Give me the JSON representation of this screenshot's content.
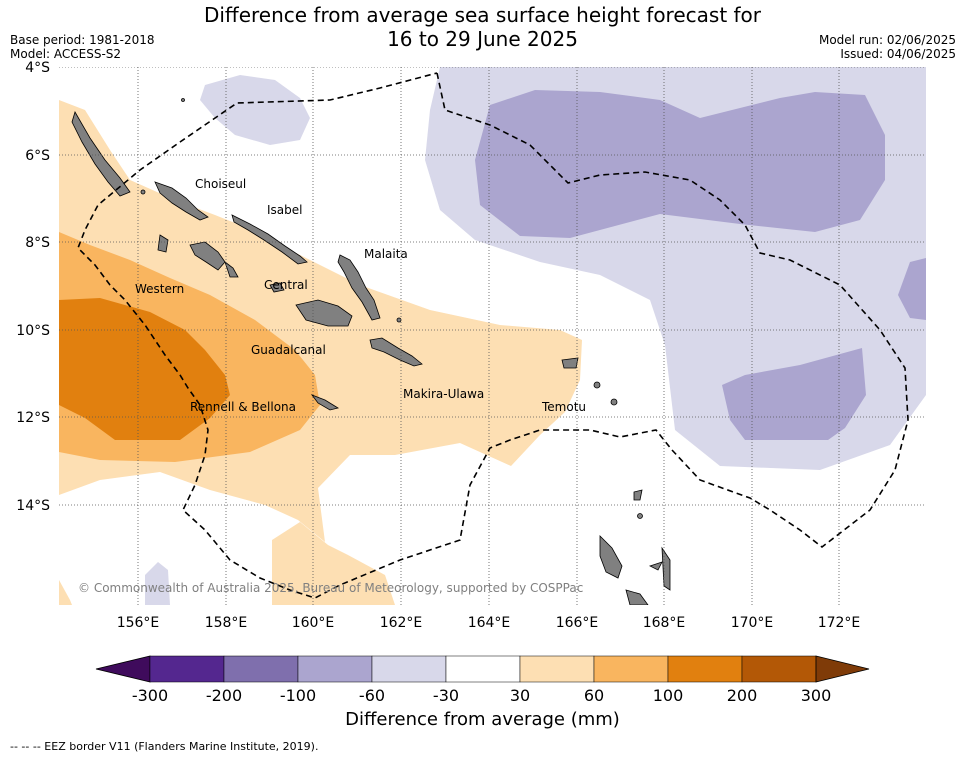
{
  "title_line1": "Difference from average sea surface height forecast for",
  "title_line2": "16 to 29 June 2025",
  "meta": {
    "base_period": "Base period: 1981-2018",
    "model": "Model: ACCESS-S2",
    "model_run": "Model run: 02/06/2025",
    "issued": "Issued: 04/06/2025"
  },
  "lat_labels": [
    "4°S",
    "6°S",
    "8°S",
    "10°S",
    "12°S",
    "14°S"
  ],
  "lon_labels": [
    "156°E",
    "158°E",
    "160°E",
    "162°E",
    "164°E",
    "166°E",
    "168°E",
    "170°E",
    "172°E"
  ],
  "regions": [
    "Choiseul",
    "Isabel",
    "Malaita",
    "Western",
    "Central",
    "Guadalcanal",
    "Rennell & Bellona",
    "Makira-Ulawa",
    "Temotu"
  ],
  "copyright": "© Commonwealth of Australia 2025, Bureau of Meteorology, supported by COSPPac",
  "colorbar": {
    "title": "Difference from average (mm)",
    "ticks": [
      "-300",
      "-200",
      "-100",
      "-60",
      "-30",
      "30",
      "60",
      "100",
      "200",
      "300"
    ],
    "colors": [
      "#3f0b5c",
      "#54278f",
      "#7f6fad",
      "#aba5cf",
      "#d8d8ea",
      "#ffffff",
      "#fddfb3",
      "#f9b55f",
      "#e1800f",
      "#b35806",
      "#7f3b08"
    ]
  },
  "eez_legend": "-- -- -- EEZ border V11 (Flanders Marine Institute, 2019)."
}
